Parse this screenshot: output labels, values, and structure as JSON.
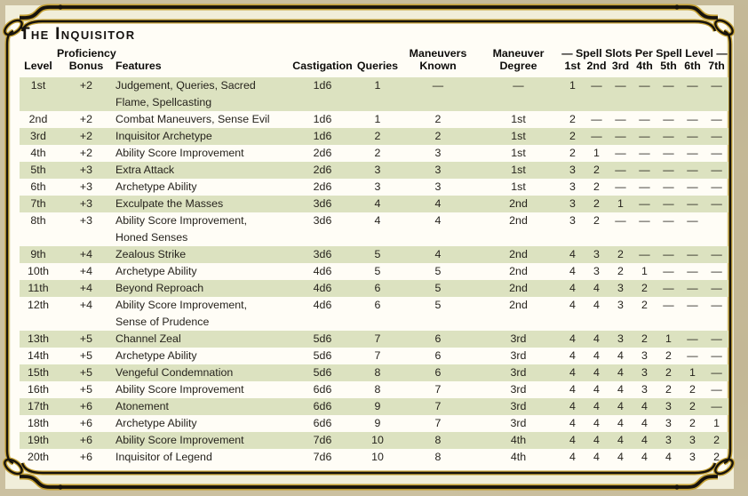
{
  "title": "The Inquisitor",
  "colors": {
    "parchment": "#cbc0a0",
    "cream": "#f1eeda",
    "panel": "#fffdf6",
    "frame_gold": "#c4a033",
    "frame_black": "#17130d",
    "stripe_green": "#dce2c0",
    "ink": "#26231d"
  },
  "table": {
    "header": {
      "row1": {
        "proficiency": "Proficiency",
        "maneuvers": "Maneuvers",
        "maneuver": "Maneuver",
        "spell_slots": "— Spell Slots Per Spell Level —"
      },
      "row2": {
        "level": "Level",
        "bonus": "Bonus",
        "features": "Features",
        "castigation": "Castigation",
        "queries": "Queries",
        "known": "Known",
        "degree": "Degree",
        "slots": [
          "1st",
          "2nd",
          "3rd",
          "4th",
          "5th",
          "6th",
          "7th"
        ]
      }
    },
    "rows": [
      {
        "level": "1st",
        "bonus": "+2",
        "features": "Judgement, Queries, Sacred Flame, Spellcasting",
        "castigation": "1d6",
        "queries": "1",
        "maneuvers_known": "—",
        "maneuver_degree": "—",
        "slots": [
          "1",
          "—",
          "—",
          "—",
          "—",
          "—",
          "—"
        ]
      },
      {
        "level": "2nd",
        "bonus": "+2",
        "features": "Combat Maneuvers, Sense Evil",
        "castigation": "1d6",
        "queries": "1",
        "maneuvers_known": "2",
        "maneuver_degree": "1st",
        "slots": [
          "2",
          "—",
          "—",
          "—",
          "—",
          "—",
          "—"
        ]
      },
      {
        "level": "3rd",
        "bonus": "+2",
        "features": "Inquisitor Archetype",
        "castigation": "1d6",
        "queries": "2",
        "maneuvers_known": "2",
        "maneuver_degree": "1st",
        "slots": [
          "2",
          "—",
          "—",
          "—",
          "—",
          "—",
          "—"
        ]
      },
      {
        "level": "4th",
        "bonus": "+2",
        "features": "Ability Score Improvement",
        "castigation": "2d6",
        "queries": "2",
        "maneuvers_known": "3",
        "maneuver_degree": "1st",
        "slots": [
          "2",
          "1",
          "—",
          "—",
          "—",
          "—",
          "—"
        ]
      },
      {
        "level": "5th",
        "bonus": "+3",
        "features": "Extra Attack",
        "castigation": "2d6",
        "queries": "3",
        "maneuvers_known": "3",
        "maneuver_degree": "1st",
        "slots": [
          "3",
          "2",
          "—",
          "—",
          "—",
          "—",
          "—"
        ]
      },
      {
        "level": "6th",
        "bonus": "+3",
        "features": "Archetype Ability",
        "castigation": "2d6",
        "queries": "3",
        "maneuvers_known": "3",
        "maneuver_degree": "1st",
        "slots": [
          "3",
          "2",
          "—",
          "—",
          "—",
          "—",
          "—"
        ]
      },
      {
        "level": "7th",
        "bonus": "+3",
        "features": "Exculpate the Masses",
        "castigation": "3d6",
        "queries": "4",
        "maneuvers_known": "4",
        "maneuver_degree": "2nd",
        "slots": [
          "3",
          "2",
          "1",
          "—",
          "—",
          "—",
          "—"
        ]
      },
      {
        "level": "8th",
        "bonus": "+3",
        "features": "Ability Score Improvement, Honed Senses",
        "castigation": "3d6",
        "queries": "4",
        "maneuvers_known": "4",
        "maneuver_degree": "2nd",
        "slots": [
          "3",
          "2",
          "—",
          "—",
          "—",
          "—",
          ""
        ]
      },
      {
        "level": "9th",
        "bonus": "+4",
        "features": "Zealous Strike",
        "castigation": "3d6",
        "queries": "5",
        "maneuvers_known": "4",
        "maneuver_degree": "2nd",
        "slots": [
          "4",
          "3",
          "2",
          "—",
          "—",
          "—",
          "—"
        ]
      },
      {
        "level": "10th",
        "bonus": "+4",
        "features": "Archetype Ability",
        "castigation": "4d6",
        "queries": "5",
        "maneuvers_known": "5",
        "maneuver_degree": "2nd",
        "slots": [
          "4",
          "3",
          "2",
          "1",
          "—",
          "—",
          "—"
        ]
      },
      {
        "level": "11th",
        "bonus": "+4",
        "features": "Beyond Reproach",
        "castigation": "4d6",
        "queries": "6",
        "maneuvers_known": "5",
        "maneuver_degree": "2nd",
        "slots": [
          "4",
          "4",
          "3",
          "2",
          "—",
          "—",
          "—"
        ]
      },
      {
        "level": "12th",
        "bonus": "+4",
        "features": "Ability Score Improvement, Sense of Prudence",
        "castigation": "4d6",
        "queries": "6",
        "maneuvers_known": "5",
        "maneuver_degree": "2nd",
        "slots": [
          "4",
          "4",
          "3",
          "2",
          "—",
          "—",
          "—"
        ]
      },
      {
        "level": "13th",
        "bonus": "+5",
        "features": "Channel Zeal",
        "castigation": "5d6",
        "queries": "7",
        "maneuvers_known": "6",
        "maneuver_degree": "3rd",
        "slots": [
          "4",
          "4",
          "3",
          "2",
          "1",
          "—",
          "—"
        ]
      },
      {
        "level": "14th",
        "bonus": "+5",
        "features": "Archetype Ability",
        "castigation": "5d6",
        "queries": "7",
        "maneuvers_known": "6",
        "maneuver_degree": "3rd",
        "slots": [
          "4",
          "4",
          "4",
          "3",
          "2",
          "—",
          "—"
        ]
      },
      {
        "level": "15th",
        "bonus": "+5",
        "features": "Vengeful Condemnation",
        "castigation": "5d6",
        "queries": "8",
        "maneuvers_known": "6",
        "maneuver_degree": "3rd",
        "slots": [
          "4",
          "4",
          "4",
          "3",
          "2",
          "1",
          "—"
        ]
      },
      {
        "level": "16th",
        "bonus": "+5",
        "features": "Ability Score Improvement",
        "castigation": "6d6",
        "queries": "8",
        "maneuvers_known": "7",
        "maneuver_degree": "3rd",
        "slots": [
          "4",
          "4",
          "4",
          "3",
          "2",
          "2",
          "—"
        ]
      },
      {
        "level": "17th",
        "bonus": "+6",
        "features": "Atonement",
        "castigation": "6d6",
        "queries": "9",
        "maneuvers_known": "7",
        "maneuver_degree": "3rd",
        "slots": [
          "4",
          "4",
          "4",
          "4",
          "3",
          "2",
          "—"
        ]
      },
      {
        "level": "18th",
        "bonus": "+6",
        "features": "Archetype Ability",
        "castigation": "6d6",
        "queries": "9",
        "maneuvers_known": "7",
        "maneuver_degree": "3rd",
        "slots": [
          "4",
          "4",
          "4",
          "4",
          "3",
          "2",
          "1"
        ]
      },
      {
        "level": "19th",
        "bonus": "+6",
        "features": "Ability Score Improvement",
        "castigation": "7d6",
        "queries": "10",
        "maneuvers_known": "8",
        "maneuver_degree": "4th",
        "slots": [
          "4",
          "4",
          "4",
          "4",
          "3",
          "3",
          "2"
        ]
      },
      {
        "level": "20th",
        "bonus": "+6",
        "features": "Inquisitor of Legend",
        "castigation": "7d6",
        "queries": "10",
        "maneuvers_known": "8",
        "maneuver_degree": "4th",
        "slots": [
          "4",
          "4",
          "4",
          "4",
          "4",
          "3",
          "2"
        ]
      }
    ]
  }
}
